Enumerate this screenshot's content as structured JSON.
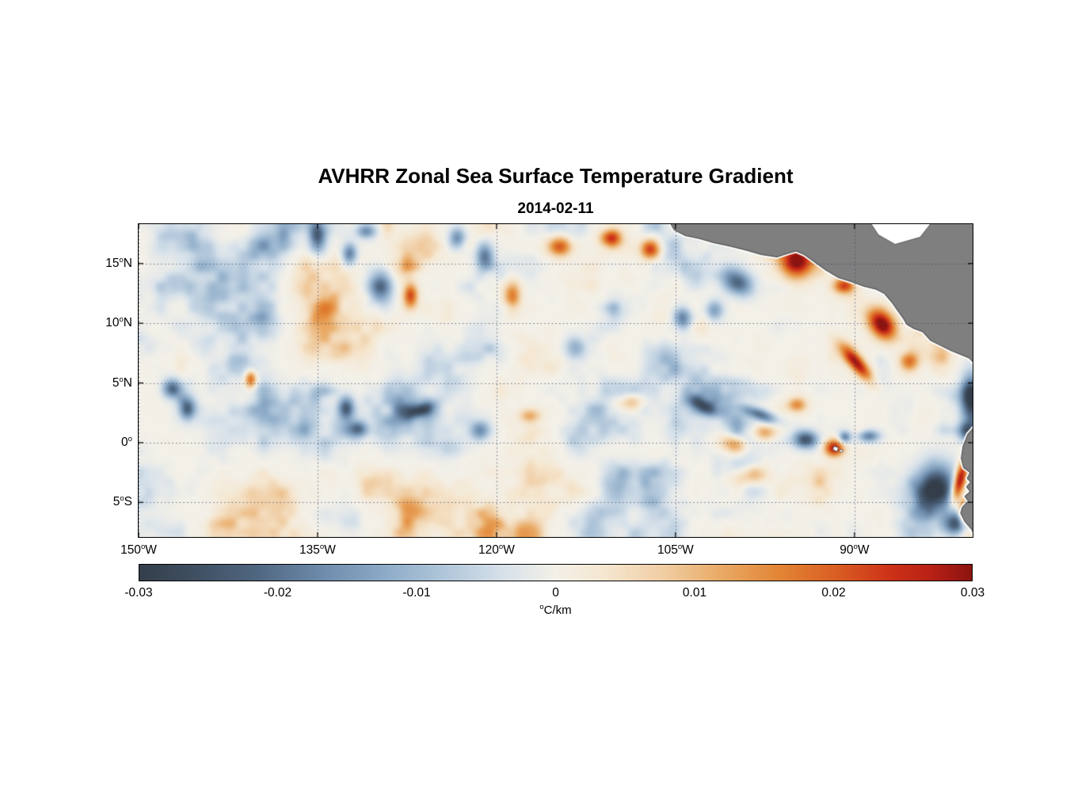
{
  "chart_data": {
    "type": "heatmap",
    "title": "AVHRR Zonal Sea Surface Temperature Gradient",
    "date": "2014-02-11",
    "x_axis": {
      "min": -150.0,
      "max": -80.1,
      "ticks": [
        {
          "label": "150°W",
          "num": "150",
          "hemi": "W",
          "lon": -150
        },
        {
          "label": "135°W",
          "num": "135",
          "hemi": "W",
          "lon": -135
        },
        {
          "label": "120°W",
          "num": "120",
          "hemi": "W",
          "lon": -120
        },
        {
          "label": "105°W",
          "num": "105",
          "hemi": "W",
          "lon": -105
        },
        {
          "label": "90°W",
          "num": "90",
          "hemi": "W",
          "lon": -90
        }
      ]
    },
    "y_axis": {
      "min": -7.9,
      "max": 18.3,
      "ticks": [
        {
          "label": "15°N",
          "num": "15",
          "hemi": "N",
          "lat": 15
        },
        {
          "label": "10°N",
          "num": "10",
          "hemi": "N",
          "lat": 10
        },
        {
          "label": "5°N",
          "num": "5",
          "hemi": "N",
          "lat": 5
        },
        {
          "label": "0°",
          "num": "0",
          "hemi": "",
          "lat": 0
        },
        {
          "label": "5°S",
          "num": "5",
          "hemi": "S",
          "lat": -5
        }
      ]
    },
    "colorbar": {
      "min": -0.03,
      "max": 0.03,
      "unit": "°C/km",
      "unit_text": "C/km",
      "ticks": [
        {
          "v": -0.03,
          "label": "-0.03"
        },
        {
          "v": -0.02,
          "label": "-0.02"
        },
        {
          "v": -0.01,
          "label": "-0.01"
        },
        {
          "v": 0,
          "label": "0"
        },
        {
          "v": 0.01,
          "label": "0.01"
        },
        {
          "v": 0.02,
          "label": "0.02"
        },
        {
          "v": 0.03,
          "label": "0.03"
        }
      ],
      "stops": [
        {
          "p": 0.0,
          "c": "#333e4a"
        },
        {
          "p": 0.07,
          "c": "#405063"
        },
        {
          "p": 0.14,
          "c": "#4f6680"
        },
        {
          "p": 0.22,
          "c": "#6d8bab"
        },
        {
          "p": 0.3,
          "c": "#8fadc9"
        },
        {
          "p": 0.38,
          "c": "#b7cbdd"
        },
        {
          "p": 0.44,
          "c": "#d8e2ea"
        },
        {
          "p": 0.5,
          "c": "#f3f0e8"
        },
        {
          "p": 0.56,
          "c": "#f5e6cf"
        },
        {
          "p": 0.63,
          "c": "#f0cda3"
        },
        {
          "p": 0.7,
          "c": "#e9a964"
        },
        {
          "p": 0.77,
          "c": "#e28434"
        },
        {
          "p": 0.84,
          "c": "#d95c22"
        },
        {
          "p": 0.9,
          "c": "#cd3318"
        },
        {
          "p": 0.95,
          "c": "#b82115"
        },
        {
          "p": 1.0,
          "c": "#8c1310"
        }
      ]
    },
    "grid": {
      "style": "dotted",
      "color": "rgba(55,70,100,0.75)"
    },
    "field": {
      "seed": 7,
      "base_amp": 0.04,
      "exponent": 1.9,
      "octaves": [
        {
          "wavelength": 120,
          "amp": 1.0
        },
        {
          "wavelength": 55,
          "amp": 0.65
        },
        {
          "wavelength": 26,
          "amp": 0.4
        },
        {
          "wavelength": 13,
          "amp": 0.2
        }
      ]
    },
    "features": [
      {
        "lon": -147.3,
        "lat": 4.6,
        "amp": -0.02,
        "sx": 0.8,
        "sy": 0.8
      },
      {
        "lon": -146.0,
        "lat": 2.9,
        "amp": -0.022,
        "sx": 0.7,
        "sy": 0.9
      },
      {
        "lon": -140.7,
        "lat": 5.4,
        "amp": 0.022,
        "sx": 0.5,
        "sy": 0.8
      },
      {
        "lon": -135.1,
        "lat": 17.2,
        "amp": -0.02,
        "sx": 0.7,
        "sy": 1.2
      },
      {
        "lon": -132.4,
        "lat": 15.9,
        "amp": -0.018,
        "sx": 0.6,
        "sy": 0.9
      },
      {
        "lon": -131.0,
        "lat": 17.8,
        "amp": -0.016,
        "sx": 0.8,
        "sy": 0.6
      },
      {
        "lon": -129.8,
        "lat": 13.2,
        "amp": -0.024,
        "sx": 1.0,
        "sy": 1.4
      },
      {
        "lon": -127.3,
        "lat": 12.4,
        "amp": 0.022,
        "sx": 0.6,
        "sy": 1.0
      },
      {
        "lon": -132.7,
        "lat": 2.9,
        "amp": -0.024,
        "sx": 0.7,
        "sy": 1.0
      },
      {
        "lon": -131.7,
        "lat": 1.2,
        "amp": -0.02,
        "sx": 0.8,
        "sy": 0.7
      },
      {
        "lon": -126.4,
        "lat": 2.8,
        "amp": -0.014,
        "sx": 1.2,
        "sy": 0.5,
        "rot": 20
      },
      {
        "lon": -123.4,
        "lat": 17.2,
        "amp": -0.016,
        "sx": 0.7,
        "sy": 0.9
      },
      {
        "lon": -121.1,
        "lat": 15.7,
        "amp": -0.018,
        "sx": 0.7,
        "sy": 1.1
      },
      {
        "lon": -118.8,
        "lat": 12.4,
        "amp": 0.018,
        "sx": 0.7,
        "sy": 1.2
      },
      {
        "lon": -121.5,
        "lat": 1.1,
        "amp": -0.016,
        "sx": 0.8,
        "sy": 0.8
      },
      {
        "lon": -117.3,
        "lat": 2.3,
        "amp": 0.012,
        "sx": 0.9,
        "sy": 0.6
      },
      {
        "lon": -114.8,
        "lat": 16.5,
        "amp": 0.02,
        "sx": 1.0,
        "sy": 0.8
      },
      {
        "lon": -110.5,
        "lat": 17.2,
        "amp": 0.022,
        "sx": 0.9,
        "sy": 0.7
      },
      {
        "lon": -107.2,
        "lat": 16.3,
        "amp": 0.024,
        "sx": 0.8,
        "sy": 0.8
      },
      {
        "lon": -113.5,
        "lat": 8.0,
        "amp": -0.012,
        "sx": 0.9,
        "sy": 0.9
      },
      {
        "lon": -109.0,
        "lat": 3.5,
        "amp": 0.012,
        "sx": 1.2,
        "sy": 0.7
      },
      {
        "lon": -104.5,
        "lat": 10.5,
        "amp": -0.02,
        "sx": 0.8,
        "sy": 0.9
      },
      {
        "lon": -101.9,
        "lat": 11.2,
        "amp": -0.016,
        "sx": 0.9,
        "sy": 0.8
      },
      {
        "lon": -99.9,
        "lat": 13.5,
        "amp": -0.022,
        "sx": 1.4,
        "sy": 1.0,
        "rot": -30
      },
      {
        "lon": -94.9,
        "lat": 15.3,
        "amp": 0.032,
        "sx": 1.3,
        "sy": 1.4
      },
      {
        "lon": -91.0,
        "lat": 13.2,
        "amp": 0.02,
        "sx": 0.8,
        "sy": 0.6
      },
      {
        "lon": -102.7,
        "lat": 3.1,
        "amp": -0.018,
        "sx": 1.3,
        "sy": 0.6,
        "rot": -25
      },
      {
        "lon": -100.2,
        "lat": 0.0,
        "amp": 0.016,
        "sx": 1.2,
        "sy": 0.8
      },
      {
        "lon": -98.0,
        "lat": 2.4,
        "amp": -0.02,
        "sx": 1.4,
        "sy": 0.5,
        "rot": -20
      },
      {
        "lon": -97.6,
        "lat": 0.9,
        "amp": 0.015,
        "sx": 1.0,
        "sy": 0.7
      },
      {
        "lon": -98.9,
        "lat": -2.7,
        "amp": 0.012,
        "sx": 1.5,
        "sy": 0.8
      },
      {
        "lon": -94.9,
        "lat": 3.2,
        "amp": 0.015,
        "sx": 0.8,
        "sy": 0.6
      },
      {
        "lon": -94.2,
        "lat": 0.3,
        "amp": -0.025,
        "sx": 1.0,
        "sy": 0.7
      },
      {
        "lon": -91.8,
        "lat": -0.4,
        "amp": 0.028,
        "sx": 0.8,
        "sy": 0.7
      },
      {
        "lon": -90.9,
        "lat": 0.5,
        "amp": -0.018,
        "sx": 0.5,
        "sy": 0.5
      },
      {
        "lon": -88.9,
        "lat": 0.6,
        "amp": -0.018,
        "sx": 0.9,
        "sy": 0.5
      },
      {
        "lon": -87.8,
        "lat": 10.0,
        "amp": 0.032,
        "sx": 1.0,
        "sy": 1.4,
        "rot": 40
      },
      {
        "lon": -89.9,
        "lat": 6.7,
        "amp": 0.028,
        "sx": 0.6,
        "sy": 1.8,
        "rot": 40
      },
      {
        "lon": -85.5,
        "lat": 6.8,
        "amp": 0.016,
        "sx": 0.8,
        "sy": 0.8
      },
      {
        "lon": -80.3,
        "lat": 3.8,
        "amp": -0.028,
        "sx": 0.8,
        "sy": 2.0
      },
      {
        "lon": -80.6,
        "lat": 1.0,
        "amp": -0.022,
        "sx": 0.8,
        "sy": 0.8
      },
      {
        "lon": -83.2,
        "lat": -3.8,
        "amp": -0.03,
        "sx": 1.6,
        "sy": 2.0
      },
      {
        "lon": -81.5,
        "lat": -6.8,
        "amp": -0.026,
        "sx": 1.2,
        "sy": 1.0
      },
      {
        "lon": -81.3,
        "lat": -3.2,
        "amp": 0.034,
        "sx": 0.5,
        "sy": 1.8,
        "rot": -15
      },
      {
        "lon": -80.9,
        "lat": -5.8,
        "amp": 0.03,
        "sx": 0.45,
        "sy": 1.0
      }
    ],
    "land": {
      "color": "#7f7f7f",
      "outline": "#555555",
      "coast_halo": "#ffffff",
      "polygons": {
        "central_america": [
          [
            -105.55,
            18.6
          ],
          [
            -105.1,
            17.8
          ],
          [
            -104.2,
            17.35
          ],
          [
            -103.0,
            17.1
          ],
          [
            -101.8,
            16.75
          ],
          [
            -100.4,
            16.45
          ],
          [
            -99.0,
            16.1
          ],
          [
            -97.8,
            15.75
          ],
          [
            -96.5,
            15.55
          ],
          [
            -95.6,
            15.85
          ],
          [
            -94.9,
            16.05
          ],
          [
            -94.2,
            15.75
          ],
          [
            -93.3,
            15.1
          ],
          [
            -92.4,
            14.45
          ],
          [
            -91.4,
            13.85
          ],
          [
            -90.3,
            13.5
          ],
          [
            -89.2,
            13.1
          ],
          [
            -88.2,
            12.85
          ],
          [
            -87.5,
            12.5
          ],
          [
            -86.9,
            11.8
          ],
          [
            -86.4,
            11.1
          ],
          [
            -85.9,
            10.4
          ],
          [
            -85.6,
            9.9
          ],
          [
            -85.0,
            9.55
          ],
          [
            -84.3,
            9.3
          ],
          [
            -83.6,
            8.55
          ],
          [
            -82.8,
            8.15
          ],
          [
            -81.9,
            7.7
          ],
          [
            -81.0,
            7.35
          ],
          [
            -80.4,
            7.1
          ],
          [
            -79.8,
            6.5
          ],
          [
            -79.8,
            18.6
          ]
        ],
        "caribbean_mask": [
          [
            -88.8,
            18.6
          ],
          [
            -83.4,
            18.6
          ],
          [
            -84.5,
            17.2
          ],
          [
            -86.6,
            16.6
          ],
          [
            -88.0,
            17.4
          ]
        ],
        "south_america": [
          [
            -79.8,
            1.5
          ],
          [
            -80.5,
            0.7
          ],
          [
            -80.9,
            -0.3
          ],
          [
            -81.05,
            -1.3
          ],
          [
            -80.85,
            -2.1
          ],
          [
            -80.3,
            -2.5
          ],
          [
            -80.55,
            -3.0
          ],
          [
            -80.25,
            -3.3
          ],
          [
            -80.6,
            -3.7
          ],
          [
            -80.3,
            -4.1
          ],
          [
            -80.75,
            -4.5
          ],
          [
            -80.45,
            -4.9
          ],
          [
            -80.95,
            -5.4
          ],
          [
            -81.1,
            -5.9
          ],
          [
            -80.75,
            -6.6
          ],
          [
            -80.15,
            -7.3
          ],
          [
            -79.8,
            -8.2
          ]
        ]
      },
      "islands": [
        [
          [
            -91.75,
            -0.3
          ],
          [
            -91.35,
            -0.4
          ],
          [
            -91.45,
            -0.75
          ],
          [
            -91.8,
            -0.6
          ]
        ],
        [
          [
            -91.15,
            -0.55
          ],
          [
            -90.95,
            -0.65
          ],
          [
            -91.1,
            -0.85
          ],
          [
            -91.25,
            -0.7
          ]
        ]
      ]
    }
  }
}
